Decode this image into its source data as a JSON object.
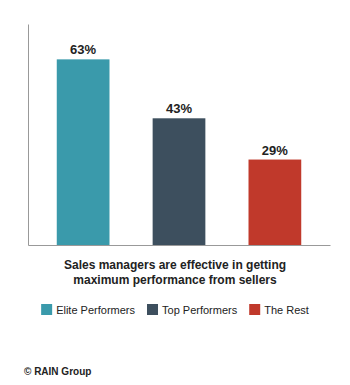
{
  "chart_data": {
    "type": "bar",
    "title": "Sales managers are effective in getting\nmaximum performance from sellers",
    "categories": [
      "Elite Performers",
      "Top Performers",
      "The Rest"
    ],
    "values": [
      63,
      43,
      29
    ],
    "value_labels": [
      "63%",
      "43%",
      "29%"
    ],
    "colors": [
      "#3a9aab",
      "#3d4f5e",
      "#c0392b"
    ],
    "ylim": [
      0,
      75
    ],
    "data_labels": true,
    "tick_labels": false,
    "grid": false,
    "legend": "bottom",
    "annotations": [
      "© RAIN Group"
    ]
  }
}
